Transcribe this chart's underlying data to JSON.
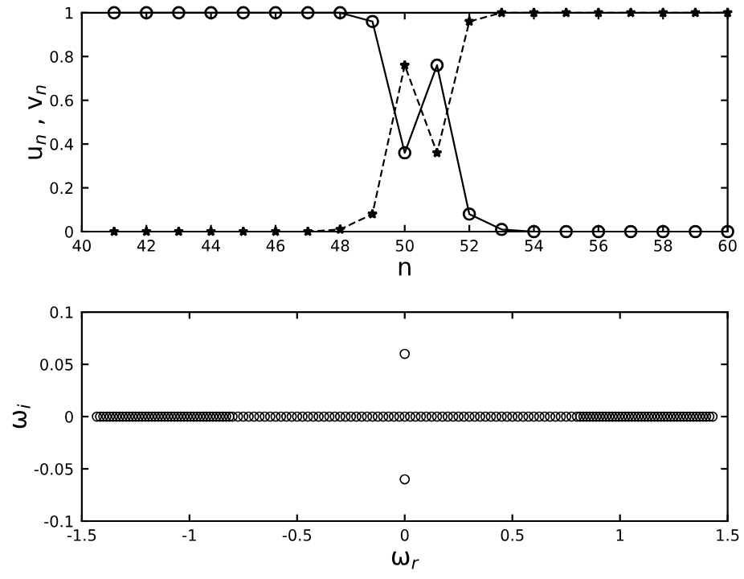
{
  "chart_data": [
    {
      "type": "line",
      "xlabel": "n",
      "ylabel": "u$_{n}$ , v$_{n}$",
      "xlim": [
        40,
        60
      ],
      "ylim": [
        0,
        1
      ],
      "xticks": [
        40,
        42,
        44,
        46,
        48,
        50,
        52,
        54,
        56,
        58,
        60
      ],
      "yticks": [
        0,
        0.2,
        0.4,
        0.6,
        0.8,
        1
      ],
      "grid": false,
      "x": [
        41,
        42,
        43,
        44,
        45,
        46,
        47,
        48,
        49,
        50,
        51,
        52,
        53,
        54,
        55,
        56,
        57,
        58,
        59,
        60
      ],
      "series": [
        {
          "color": "#000000",
          "marker": "circle",
          "line_style": "solid",
          "values": [
            1,
            1,
            1,
            1,
            1,
            1,
            1,
            1,
            0.96,
            0.36,
            0.76,
            0.08,
            0.01,
            0,
            0,
            0,
            0,
            0,
            0,
            0
          ]
        },
        {
          "color": "#000000",
          "marker": "star",
          "line_style": "dashed",
          "values": [
            0,
            0,
            0,
            0,
            0,
            0,
            0,
            0.01,
            0.08,
            0.76,
            0.36,
            0.96,
            1,
            1,
            1,
            1,
            1,
            1,
            1,
            1
          ]
        }
      ]
    },
    {
      "type": "scatter",
      "xlabel": "ω$_{r}$",
      "ylabel": "ω$_{i}$",
      "xlim": [
        -1.5,
        1.5
      ],
      "ylim": [
        -0.1,
        0.1
      ],
      "xticks": [
        -1.5,
        -1,
        -0.5,
        0,
        0.5,
        1,
        1.5
      ],
      "yticks": [
        -0.1,
        -0.05,
        0,
        0.05,
        0.1
      ],
      "grid": false,
      "marker": "circle",
      "series": [
        {
          "color": "#000000",
          "x": [
            -1.43,
            -1.415,
            -1.4,
            -1.385,
            -1.37,
            -1.355,
            -1.34,
            -1.325,
            -1.31,
            -1.295,
            -1.28,
            -1.265,
            -1.25,
            -1.235,
            -1.22,
            -1.205,
            -1.19,
            -1.175,
            -1.16,
            -1.145,
            -1.13,
            -1.115,
            -1.1,
            -1.085,
            -1.07,
            -1.055,
            -1.04,
            -1.025,
            -1.01,
            -0.995,
            -0.98,
            -0.965,
            -0.95,
            -0.935,
            -0.92,
            -0.905,
            -0.89,
            -0.875,
            -0.86,
            -0.845,
            -0.83,
            -0.815,
            -0.8,
            -0.775,
            -0.75,
            -0.725,
            -0.7,
            -0.675,
            -0.65,
            -0.625,
            -0.6,
            -0.575,
            -0.55,
            -0.525,
            -0.5,
            -0.475,
            -0.45,
            -0.425,
            -0.4,
            -0.375,
            -0.35,
            -0.325,
            -0.3,
            -0.275,
            -0.25,
            -0.225,
            -0.2,
            -0.175,
            -0.15,
            -0.125,
            -0.1,
            -0.075,
            -0.05,
            -0.025,
            0,
            0.025,
            0.05,
            0.075,
            0.1,
            0.125,
            0.15,
            0.175,
            0.2,
            0.225,
            0.25,
            0.275,
            0.3,
            0.325,
            0.35,
            0.375,
            0.4,
            0.425,
            0.45,
            0.475,
            0.5,
            0.525,
            0.55,
            0.575,
            0.6,
            0.625,
            0.65,
            0.675,
            0.7,
            0.725,
            0.75,
            0.775,
            0.8,
            0.815,
            0.83,
            0.845,
            0.86,
            0.875,
            0.89,
            0.905,
            0.92,
            0.935,
            0.95,
            0.965,
            0.98,
            0.995,
            1.01,
            1.025,
            1.04,
            1.055,
            1.07,
            1.085,
            1.1,
            1.115,
            1.13,
            1.145,
            1.16,
            1.175,
            1.19,
            1.205,
            1.22,
            1.235,
            1.25,
            1.265,
            1.28,
            1.295,
            1.31,
            1.325,
            1.34,
            1.355,
            1.37,
            1.385,
            1.4,
            1.415,
            1.43,
            0,
            0
          ],
          "values": [
            0,
            0,
            0,
            0,
            0,
            0,
            0,
            0,
            0,
            0,
            0,
            0,
            0,
            0,
            0,
            0,
            0,
            0,
            0,
            0,
            0,
            0,
            0,
            0,
            0,
            0,
            0,
            0,
            0,
            0,
            0,
            0,
            0,
            0,
            0,
            0,
            0,
            0,
            0,
            0,
            0,
            0,
            0,
            0,
            0,
            0,
            0,
            0,
            0,
            0,
            0,
            0,
            0,
            0,
            0,
            0,
            0,
            0,
            0,
            0,
            0,
            0,
            0,
            0,
            0,
            0,
            0,
            0,
            0,
            0,
            0,
            0,
            0,
            0,
            0,
            0,
            0,
            0,
            0,
            0,
            0,
            0,
            0,
            0,
            0,
            0,
            0,
            0,
            0,
            0,
            0,
            0,
            0,
            0,
            0,
            0,
            0,
            0,
            0,
            0,
            0,
            0,
            0,
            0,
            0,
            0,
            0,
            0,
            0,
            0,
            0,
            0,
            0,
            0,
            0,
            0,
            0,
            0,
            0,
            0,
            0,
            0,
            0,
            0,
            0,
            0,
            0,
            0,
            0,
            0,
            0,
            0,
            0,
            0,
            0,
            0,
            0,
            0,
            0,
            0,
            0,
            0,
            0,
            0,
            0,
            0,
            0,
            0,
            0,
            0.06,
            -0.06
          ]
        }
      ]
    }
  ]
}
